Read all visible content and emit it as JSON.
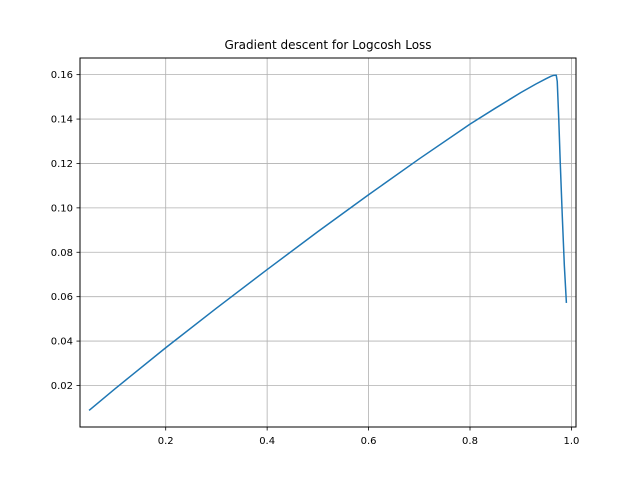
{
  "chart_data": {
    "type": "line",
    "title": "Gradient descent for Logcosh Loss",
    "xlabel": "",
    "ylabel": "",
    "xlim": [
      0.031,
      1.009
    ],
    "ylim": [
      0.0013,
      0.1675
    ],
    "xticks": [
      0.2,
      0.4,
      0.6,
      0.8,
      1.0
    ],
    "xtick_labels": [
      "0.2",
      "0.4",
      "0.6",
      "0.8",
      "1.0"
    ],
    "yticks": [
      0.02,
      0.04,
      0.06,
      0.08,
      0.1,
      0.12,
      0.14,
      0.16
    ],
    "ytick_labels": [
      "0.02",
      "0.04",
      "0.06",
      "0.08",
      "0.10",
      "0.12",
      "0.14",
      "0.16"
    ],
    "grid": true,
    "legend": "none",
    "series": [
      {
        "color": "#1f77b4",
        "x": [
          0.05,
          0.1,
          0.2,
          0.3,
          0.4,
          0.5,
          0.6,
          0.7,
          0.8,
          0.85,
          0.9,
          0.93,
          0.95,
          0.96,
          0.965,
          0.97,
          0.972,
          0.975,
          0.978,
          0.982,
          0.986,
          0.99
        ],
        "y": [
          0.009,
          0.0185,
          0.037,
          0.0548,
          0.0722,
          0.0893,
          0.1059,
          0.1221,
          0.1377,
          0.1449,
          0.1519,
          0.1558,
          0.1582,
          0.1593,
          0.1597,
          0.1598,
          0.157,
          0.14,
          0.12,
          0.096,
          0.074,
          0.0575
        ]
      }
    ]
  }
}
